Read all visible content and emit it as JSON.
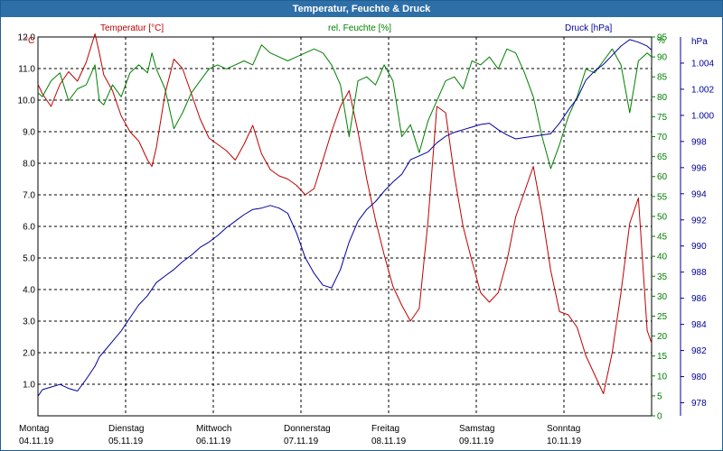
{
  "window": {
    "title": "Temperatur, Feuchte & Druck"
  },
  "chart_data": {
    "type": "line",
    "title": "Temperatur, Feuchte & Druck",
    "x_range_days": [
      0,
      7
    ],
    "grid": true,
    "day_labels": [
      {
        "day": "Montag",
        "date": "04.11.19"
      },
      {
        "day": "Dienstag",
        "date": "05.11.19"
      },
      {
        "day": "Mittwoch",
        "date": "06.11.19"
      },
      {
        "day": "Donnerstag",
        "date": "07.11.19"
      },
      {
        "day": "Freitag",
        "date": "08.11.19"
      },
      {
        "day": "Samstag",
        "date": "09.11.19"
      },
      {
        "day": "Sonntag",
        "date": "10.11.19"
      }
    ],
    "axes": {
      "temperature": {
        "label": "Temperatur [°C]",
        "unit": "°C",
        "range": [
          0,
          12.0
        ],
        "ticks": [
          "1.0",
          "2.0",
          "3.0",
          "4.0",
          "5.0",
          "6.0",
          "7.0",
          "8.0",
          "9.0",
          "10.0",
          "11.0",
          "12.0"
        ],
        "color": "#c00000"
      },
      "humidity": {
        "label": "rel. Feuchte [%]",
        "unit": "%",
        "range": [
          0,
          95
        ],
        "ticks": [
          "0",
          "5",
          "10",
          "15",
          "20",
          "25",
          "30",
          "35",
          "40",
          "45",
          "50",
          "55",
          "60",
          "65",
          "70",
          "75",
          "80",
          "85",
          "90",
          "95"
        ],
        "color": "#008000"
      },
      "pressure": {
        "label": "Druck [hPa]",
        "unit": "hPa",
        "range": [
          977,
          1006
        ],
        "ticks": [
          "978",
          "980",
          "982",
          "984",
          "986",
          "988",
          "990",
          "992",
          "994",
          "996",
          "998",
          "1.000",
          "1.002",
          "1.004"
        ],
        "color": "#0000a0"
      }
    },
    "series": [
      {
        "name": "Temperatur [°C]",
        "color": "#c00000",
        "axis": "temperature",
        "x": [
          0,
          0.05,
          0.15,
          0.25,
          0.35,
          0.45,
          0.55,
          0.65,
          0.7,
          0.75,
          0.85,
          0.95,
          1.05,
          1.15,
          1.25,
          1.3,
          1.35,
          1.45,
          1.55,
          1.65,
          1.75,
          1.85,
          1.95,
          2.05,
          2.15,
          2.25,
          2.35,
          2.45,
          2.55,
          2.65,
          2.75,
          2.85,
          2.95,
          3.05,
          3.15,
          3.25,
          3.35,
          3.45,
          3.55,
          3.65,
          3.75,
          3.85,
          3.95,
          4.05,
          4.15,
          4.25,
          4.35,
          4.45,
          4.55,
          4.65,
          4.75,
          4.85,
          4.95,
          5.05,
          5.15,
          5.25,
          5.35,
          5.45,
          5.55,
          5.65,
          5.75,
          5.85,
          5.95,
          6.05,
          6.15,
          6.25,
          6.35,
          6.45,
          6.55,
          6.65,
          6.75,
          6.85,
          6.95,
          7.0
        ],
        "values": [
          10.5,
          10.2,
          9.8,
          10.5,
          10.9,
          10.6,
          11.2,
          12.1,
          11.5,
          10.8,
          10.3,
          9.5,
          9.0,
          8.7,
          8.1,
          7.9,
          8.5,
          10.2,
          11.3,
          11.0,
          10.2,
          9.4,
          8.8,
          8.6,
          8.4,
          8.1,
          8.6,
          9.2,
          8.3,
          7.8,
          7.6,
          7.5,
          7.3,
          7.0,
          7.2,
          8.1,
          9.0,
          9.8,
          10.3,
          9.0,
          7.5,
          6.2,
          5.1,
          4.1,
          3.5,
          3.0,
          3.4,
          6.2,
          9.8,
          9.6,
          7.6,
          6.0,
          4.9,
          3.9,
          3.6,
          3.9,
          4.9,
          6.3,
          7.1,
          7.9,
          6.4,
          4.6,
          3.3,
          3.2,
          2.8,
          1.9,
          1.3,
          0.7,
          2.0,
          3.9,
          6.1,
          6.9,
          2.7,
          2.3
        ]
      },
      {
        "name": "rel. Feuchte [%]",
        "color": "#008000",
        "axis": "humidity",
        "x": [
          0,
          0.05,
          0.15,
          0.25,
          0.35,
          0.45,
          0.55,
          0.65,
          0.7,
          0.75,
          0.85,
          0.95,
          1.05,
          1.15,
          1.25,
          1.3,
          1.35,
          1.45,
          1.55,
          1.65,
          1.75,
          1.85,
          1.95,
          2.05,
          2.15,
          2.25,
          2.35,
          2.45,
          2.55,
          2.65,
          2.75,
          2.85,
          2.95,
          3.05,
          3.15,
          3.25,
          3.35,
          3.45,
          3.55,
          3.65,
          3.75,
          3.85,
          3.95,
          4.05,
          4.15,
          4.25,
          4.35,
          4.45,
          4.55,
          4.65,
          4.75,
          4.85,
          4.95,
          5.05,
          5.15,
          5.25,
          5.35,
          5.45,
          5.55,
          5.65,
          5.75,
          5.85,
          5.95,
          6.05,
          6.15,
          6.25,
          6.35,
          6.45,
          6.55,
          6.65,
          6.75,
          6.85,
          6.95,
          7.0
        ],
        "values": [
          81,
          80,
          84,
          86,
          79,
          82,
          83,
          88,
          79,
          78,
          83,
          80,
          86,
          88,
          86,
          91,
          87,
          82,
          72,
          76,
          81,
          84,
          87,
          88,
          87,
          88,
          89,
          88,
          93,
          91,
          90,
          89,
          90,
          91,
          92,
          91,
          88,
          83,
          70,
          84,
          85,
          83,
          88,
          84,
          70,
          73,
          66,
          74,
          79,
          84,
          85,
          82,
          89,
          88,
          90,
          87,
          92,
          91,
          86,
          80,
          70,
          62,
          68,
          75,
          80,
          87,
          86,
          89,
          92,
          88,
          76,
          89,
          91,
          90
        ]
      },
      {
        "name": "Druck [hPa]",
        "color": "#0000a0",
        "axis": "pressure",
        "x": [
          0,
          0.05,
          0.15,
          0.25,
          0.35,
          0.45,
          0.55,
          0.65,
          0.7,
          0.75,
          0.85,
          0.95,
          1.05,
          1.15,
          1.25,
          1.3,
          1.35,
          1.45,
          1.55,
          1.65,
          1.75,
          1.85,
          1.95,
          2.05,
          2.15,
          2.25,
          2.35,
          2.45,
          2.55,
          2.65,
          2.75,
          2.85,
          2.95,
          3.05,
          3.15,
          3.25,
          3.35,
          3.45,
          3.55,
          3.65,
          3.75,
          3.85,
          3.95,
          4.05,
          4.15,
          4.25,
          4.35,
          4.45,
          4.55,
          4.65,
          4.75,
          4.85,
          4.95,
          5.05,
          5.15,
          5.25,
          5.35,
          5.45,
          5.55,
          5.65,
          5.75,
          5.85,
          5.95,
          6.05,
          6.15,
          6.25,
          6.35,
          6.45,
          6.55,
          6.65,
          6.75,
          6.85,
          6.95,
          7.0
        ],
        "values": [
          978.5,
          979.0,
          979.2,
          979.4,
          979.1,
          978.9,
          979.8,
          980.8,
          981.5,
          981.9,
          982.7,
          983.5,
          984.5,
          985.5,
          986.2,
          986.7,
          987.2,
          987.7,
          988.2,
          988.8,
          989.3,
          989.9,
          990.3,
          990.8,
          991.4,
          991.9,
          992.4,
          992.8,
          992.9,
          993.1,
          992.9,
          992.5,
          991.0,
          989.1,
          987.9,
          987.0,
          986.8,
          988.2,
          990.3,
          991.9,
          992.8,
          993.4,
          994.2,
          994.9,
          995.5,
          996.6,
          996.9,
          997.2,
          997.9,
          998.4,
          998.7,
          998.9,
          999.1,
          999.3,
          999.4,
          998.9,
          998.5,
          998.2,
          998.3,
          998.4,
          998.5,
          998.6,
          999.4,
          1000.4,
          1001.3,
          1002.7,
          1003.4,
          1003.9,
          1004.6,
          1005.3,
          1005.8,
          1005.6,
          1005.3,
          1005.0
        ]
      }
    ]
  }
}
